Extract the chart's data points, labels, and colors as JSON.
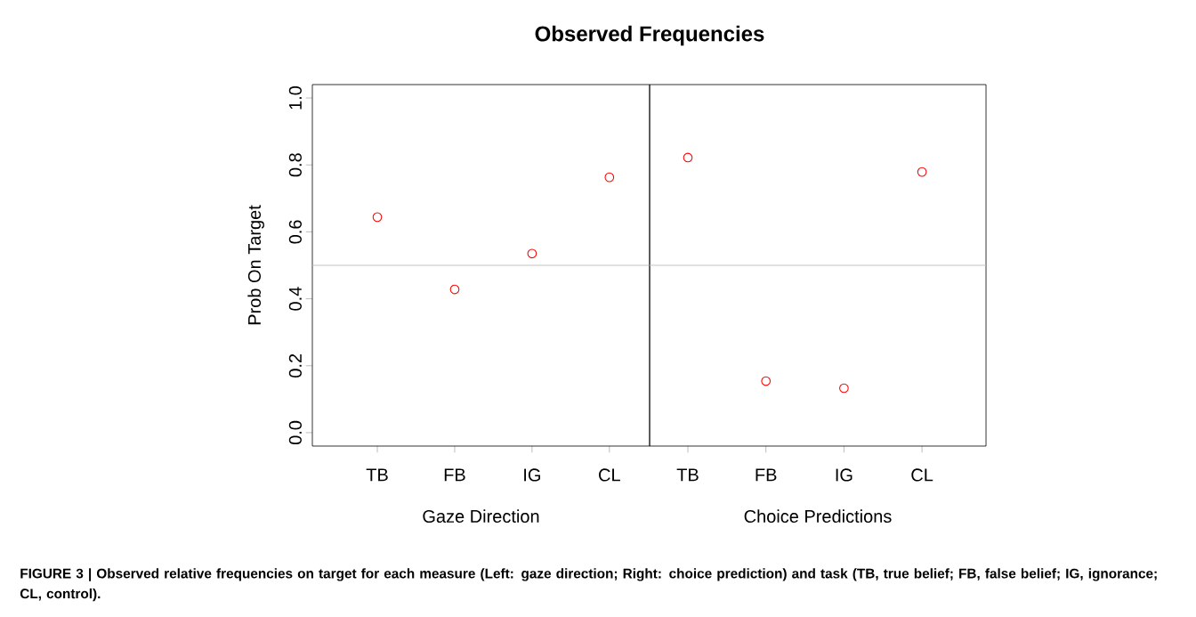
{
  "chart_data": [
    {
      "type": "scatter",
      "title": "Observed Frequencies",
      "xlabel": "Gaze Direction",
      "ylabel": "Prob On Target",
      "categories": [
        "TB",
        "FB",
        "IG",
        "CL"
      ],
      "series": [
        {
          "color": "#ff0000",
          "values": [
            0.644,
            0.428,
            0.535,
            0.763
          ]
        }
      ],
      "ylim": [
        -0.04,
        1.04
      ],
      "yticks": [
        {
          "value": 0,
          "label": "0.0"
        },
        0.2,
        0.4,
        0.6,
        0.8,
        {
          "value": 1,
          "label": "1.0"
        }
      ],
      "marker": "circle",
      "ref_lines": [
        {
          "axis": "y",
          "value": 0.5,
          "color": "#bebebe"
        }
      ],
      "annotations": [
        "FIGURE 3 | Observed relative frequencies on target for each measure (Left: gaze direction; Right: choice prediction) and task (TB, true belief; FB, false belief; IG, ignorance; CL, control)."
      ]
    },
    {
      "type": "scatter",
      "xlabel": "Choice Predictions",
      "categories": [
        "TB",
        "FB",
        "IG",
        "CL"
      ],
      "series": [
        {
          "color": "#ff0000",
          "values": [
            0.822,
            0.154,
            0.133,
            0.779
          ]
        }
      ],
      "ylim": [
        -0.04,
        1.04
      ],
      "tick_labels": "x",
      "marker": "circle",
      "ref_lines": [
        {
          "axis": "y",
          "value": 0.5,
          "color": "#bebebe"
        }
      ]
    }
  ]
}
